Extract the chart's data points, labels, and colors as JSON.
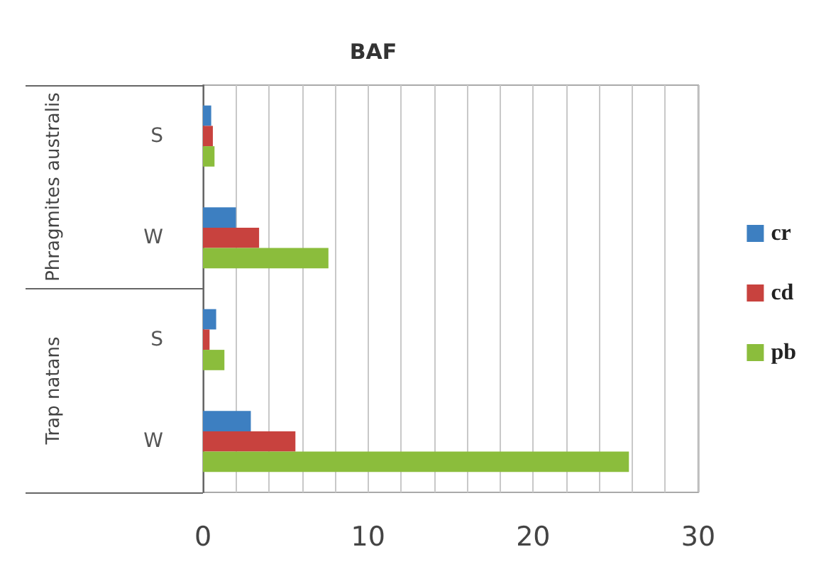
{
  "chart_data": {
    "type": "bar",
    "title": "BAF",
    "orientation": "horizontal",
    "categories": [
      "S",
      "W",
      "S",
      "W"
    ],
    "annotations": [
      "Phragmites australis",
      "Trap natans"
    ],
    "series": [
      {
        "name": "cr",
        "color": "#3d7fc1",
        "values": [
          0.5,
          2.0,
          0.8,
          2.9
        ]
      },
      {
        "name": "cd",
        "color": "#c8423e",
        "values": [
          0.6,
          3.4,
          0.4,
          5.6
        ]
      },
      {
        "name": "pb",
        "color": "#8bbd3c",
        "values": [
          0.7,
          7.6,
          1.3,
          25.8
        ]
      }
    ],
    "xlim": [
      0,
      30
    ],
    "xticks": [
      0,
      {
        "value": 2,
        "label": null
      },
      {
        "value": 4,
        "label": null
      },
      {
        "value": 6,
        "label": null
      },
      {
        "value": 8,
        "label": null
      },
      10,
      {
        "value": 12,
        "label": null
      },
      {
        "value": 14,
        "label": null
      },
      {
        "value": 16,
        "label": null
      },
      {
        "value": 18,
        "label": null
      },
      20,
      {
        "value": 22,
        "label": null
      },
      {
        "value": 24,
        "label": null
      },
      {
        "value": 26,
        "label": null
      },
      {
        "value": 28,
        "label": null
      },
      30
    ],
    "grid": "x",
    "legend": "right"
  }
}
